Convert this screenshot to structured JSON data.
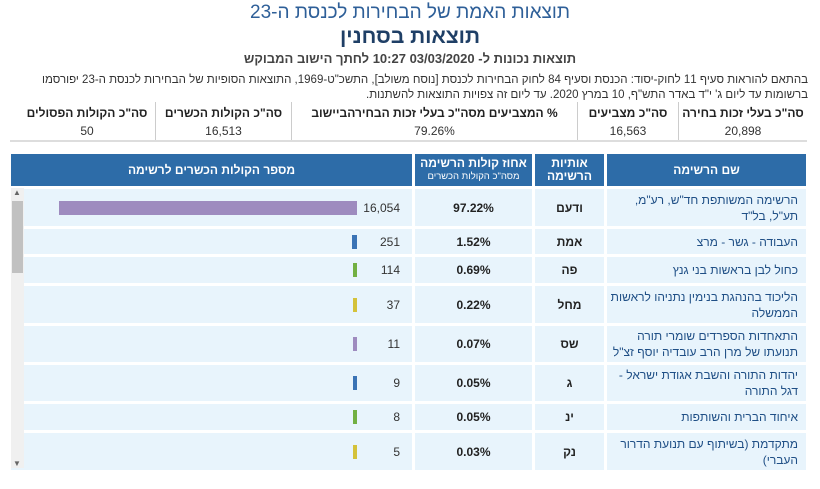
{
  "header": {
    "title": "תוצאות האמת של הבחירות לכנסת ה-23",
    "subtitle": "תוצאות בסחנין",
    "updated": "תוצאות נכונות ל- 03/03/2020 10:27  לחתך הישוב המבוקש"
  },
  "notice": "בהתאם להוראות סעיף 11 לחוק-יסוד: הכנסת וסעיף 84 לחוק הבחירות לכנסת [נוסח משולב], התשכ\"ט-1969, התוצאות הסופיות של הבחירות לכנסת ה-23 יפורסמו ברשומות עד ליום ג' י\"ד באדר התש\"ף, 10 במרץ 2020. עד ליום זה צפויות התוצאות להשתנות.",
  "summary": [
    {
      "label": "סה\"כ בעלי זכות בחירה",
      "value": "20,898"
    },
    {
      "label": "סה\"כ מצביעים",
      "value": "16,563"
    },
    {
      "label": "% המצביעים מסה\"כ בעלי זכות הבחירהביישוב",
      "value": "79.26%"
    },
    {
      "label": "סה\"כ הקולות הכשרים",
      "value": "16,513"
    },
    {
      "label": "סה\"כ הקולות הפסולים",
      "value": "50"
    }
  ],
  "table": {
    "headers": {
      "name": "שם הרשימה",
      "letters": "אותיות הרשימה",
      "pct": "אחוז קולות הרשימה",
      "pct_sub": "מסה\"כ הקולות הכשרים",
      "votes": "מספר הקולות הכשרים לרשימה"
    },
    "rows": [
      {
        "name": "הרשימה המשותפת חד\"ש, רע\"מ, תע\"ל, בל\"ד",
        "letters": "ודעם",
        "pct": "97.22%",
        "votes": "16,054",
        "value": 16054,
        "color": "#9e8bbf"
      },
      {
        "name": "העבודה - גשר - מרצ",
        "letters": "אמת",
        "pct": "1.52%",
        "votes": "251",
        "value": 251,
        "color": "#3a73b5"
      },
      {
        "name": "כחול לבן בראשות בני גנץ",
        "letters": "פה",
        "pct": "0.69%",
        "votes": "114",
        "value": 114,
        "color": "#72b043"
      },
      {
        "name": "הליכוד בהנהגת בנימין נתניהו לראשות הממשלה",
        "letters": "מחל",
        "pct": "0.22%",
        "votes": "37",
        "value": 37,
        "color": "#d4c23a"
      },
      {
        "name": "התאחדות הספרדים שומרי תורה תנועתו של מרן הרב עובדיה יוסף זצ\"ל",
        "letters": "שס",
        "pct": "0.07%",
        "votes": "11",
        "value": 11,
        "color": "#9e8bbf"
      },
      {
        "name": "יהדות התורה והשבת אגודת ישראל - דגל התורה",
        "letters": "ג",
        "pct": "0.05%",
        "votes": "9",
        "value": 9,
        "color": "#3a73b5"
      },
      {
        "name": "איחוד הברית והשותפות",
        "letters": "ינ",
        "pct": "0.05%",
        "votes": "8",
        "value": 8,
        "color": "#72b043"
      },
      {
        "name": "מתקדמת (בשיתוף עם תנועת הדרור העברי)",
        "letters": "נק",
        "pct": "0.03%",
        "votes": "5",
        "value": 5,
        "color": "#d4c23a"
      }
    ]
  }
}
